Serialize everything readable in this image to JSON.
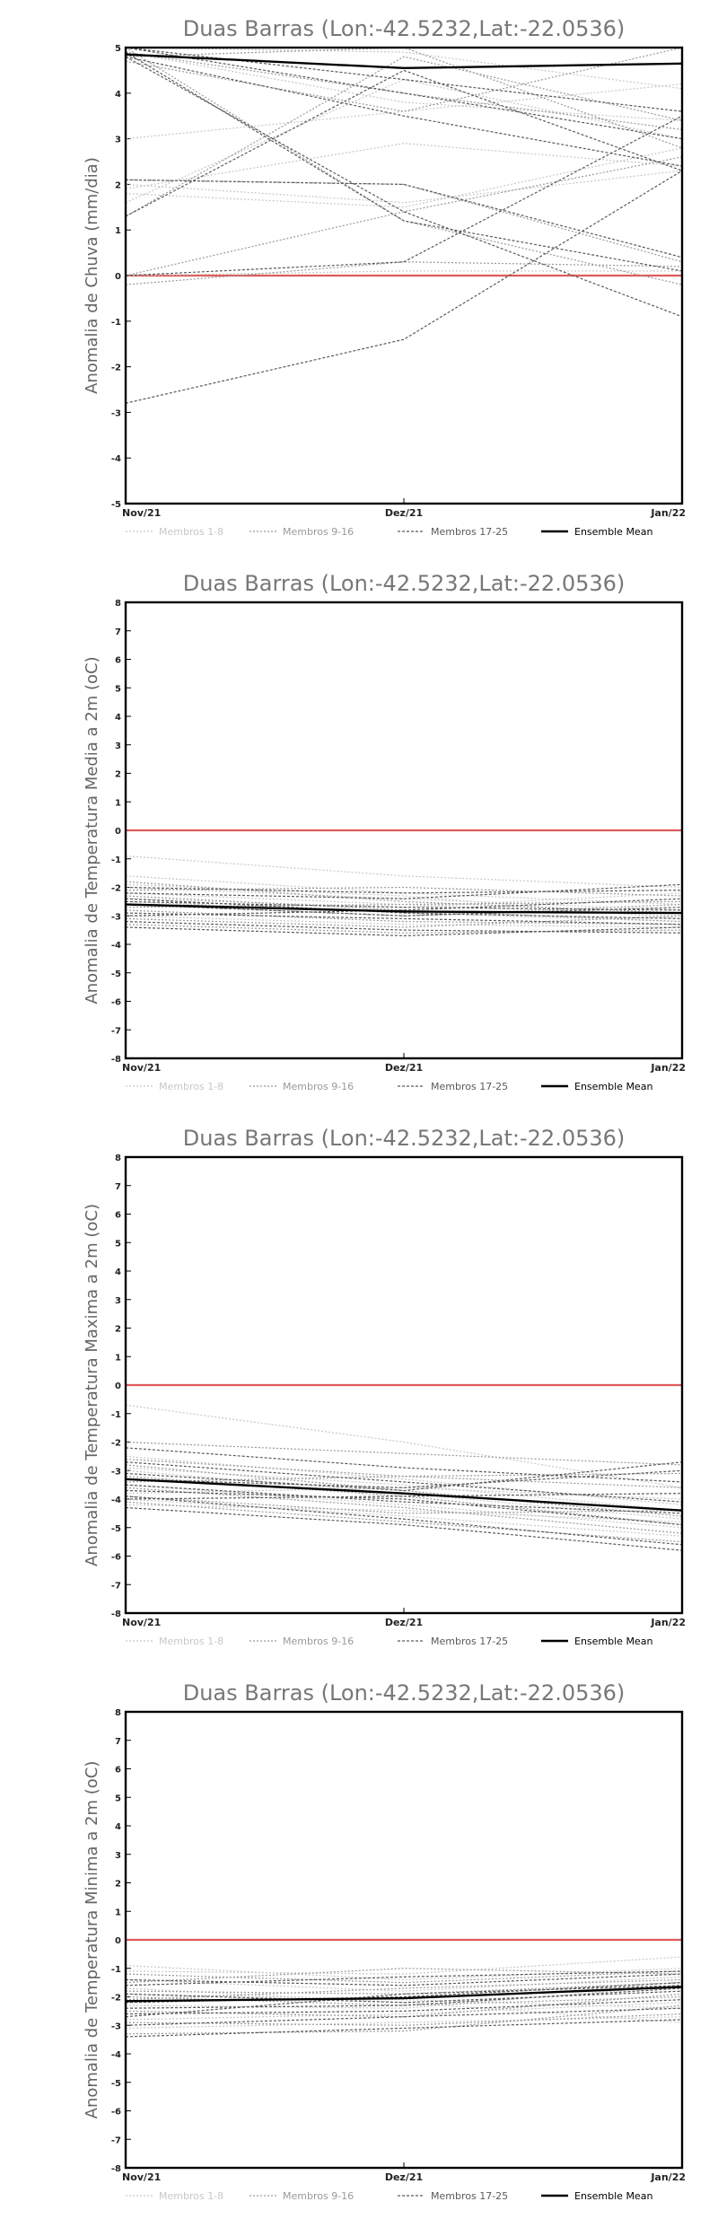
{
  "colors": {
    "zero_line": "#e05a5a",
    "members_1_8": "#c8c8c8",
    "members_9_16": "#9a9a9a",
    "members_17_25": "#5a5a5a",
    "ensemble_mean": "#000000"
  },
  "chart_data": [
    {
      "type": "line",
      "title": "Duas Barras (Lon:-42.5232,Lat:-22.0536)",
      "ylabel": "Anomalia de Chuva (mm/dia)",
      "categories": [
        "Nov/21",
        "Dez/21",
        "Jan/22"
      ],
      "ylim": [
        -5,
        5
      ],
      "yticks": [
        -5,
        -4,
        -3,
        -2,
        -1,
        0,
        1,
        2,
        3,
        4,
        5
      ],
      "legend": [
        "Membros 1-8",
        "Membros 9-16",
        "Membros 17-25",
        "Ensemble Mean"
      ],
      "series": [
        {
          "group": 0,
          "values": [
            3.0,
            3.6,
            4.2
          ]
        },
        {
          "group": 0,
          "values": [
            1.9,
            2.9,
            2.4
          ]
        },
        {
          "group": 0,
          "values": [
            1.8,
            1.5,
            2.8
          ]
        },
        {
          "group": 0,
          "values": [
            5.0,
            4.9,
            4.1
          ]
        },
        {
          "group": 0,
          "values": [
            2.0,
            1.6,
            2.3
          ]
        },
        {
          "group": 0,
          "values": [
            4.9,
            3.8,
            3.4
          ]
        },
        {
          "group": 0,
          "values": [
            1.6,
            4.3,
            3.0
          ]
        },
        {
          "group": 0,
          "values": [
            0.0,
            0.1,
            0.1
          ]
        },
        {
          "group": 1,
          "values": [
            4.9,
            4.0,
            3.2
          ]
        },
        {
          "group": 1,
          "values": [
            1.3,
            4.8,
            3.4
          ]
        },
        {
          "group": 1,
          "values": [
            -0.2,
            0.3,
            0.2
          ]
        },
        {
          "group": 1,
          "values": [
            2.1,
            2.0,
            0.3
          ]
        },
        {
          "group": 1,
          "values": [
            0.0,
            1.4,
            2.6
          ]
        },
        {
          "group": 1,
          "values": [
            4.7,
            3.6,
            5.0
          ]
        },
        {
          "group": 1,
          "values": [
            4.8,
            5.0,
            2.8
          ]
        },
        {
          "group": 1,
          "values": [
            5.0,
            1.2,
            -0.2
          ]
        },
        {
          "group": 2,
          "values": [
            -2.8,
            -1.4,
            2.3
          ]
        },
        {
          "group": 2,
          "values": [
            4.8,
            1.4,
            -0.9
          ]
        },
        {
          "group": 2,
          "values": [
            5.0,
            4.3,
            3.6
          ]
        },
        {
          "group": 2,
          "values": [
            2.1,
            2.0,
            0.4
          ]
        },
        {
          "group": 2,
          "values": [
            1.3,
            4.5,
            2.3
          ]
        },
        {
          "group": 2,
          "values": [
            4.9,
            1.2,
            0.1
          ]
        },
        {
          "group": 2,
          "values": [
            0.0,
            0.3,
            3.5
          ]
        },
        {
          "group": 2,
          "values": [
            4.8,
            3.5,
            2.4
          ]
        },
        {
          "group": 2,
          "values": [
            5.0,
            4.0,
            3.0
          ]
        },
        {
          "group": 3,
          "values": [
            4.85,
            4.55,
            4.65
          ]
        }
      ]
    },
    {
      "type": "line",
      "title": "Duas Barras (Lon:-42.5232,Lat:-22.0536)",
      "ylabel": "Anomalia de Temperatura Media a 2m (oC)",
      "categories": [
        "Nov/21",
        "Dez/21",
        "Jan/22"
      ],
      "ylim": [
        -8,
        8
      ],
      "yticks": [
        -8,
        -7,
        -6,
        -5,
        -4,
        -3,
        -2,
        -1,
        0,
        1,
        2,
        3,
        4,
        5,
        6,
        7,
        8
      ],
      "legend": [
        "Membros 1-8",
        "Membros 9-16",
        "Membros 17-25",
        "Ensemble Mean"
      ],
      "series": [
        {
          "group": 0,
          "values": [
            -0.9,
            -1.6,
            -2.0
          ]
        },
        {
          "group": 0,
          "values": [
            -1.6,
            -2.2,
            -2.6
          ]
        },
        {
          "group": 0,
          "values": [
            -2.0,
            -2.4,
            -2.8
          ]
        },
        {
          "group": 0,
          "values": [
            -2.2,
            -2.6,
            -3.0
          ]
        },
        {
          "group": 0,
          "values": [
            -2.5,
            -2.9,
            -3.2
          ]
        },
        {
          "group": 0,
          "values": [
            -3.0,
            -3.3,
            -3.4
          ]
        },
        {
          "group": 0,
          "values": [
            -2.4,
            -2.7,
            -2.2
          ]
        },
        {
          "group": 0,
          "values": [
            -1.9,
            -2.3,
            -3.1
          ]
        },
        {
          "group": 1,
          "values": [
            -2.1,
            -2.0,
            -2.3
          ]
        },
        {
          "group": 1,
          "values": [
            -2.3,
            -2.8,
            -3.2
          ]
        },
        {
          "group": 1,
          "values": [
            -2.6,
            -3.0,
            -2.6
          ]
        },
        {
          "group": 1,
          "values": [
            -2.8,
            -3.2,
            -3.3
          ]
        },
        {
          "group": 1,
          "values": [
            -3.1,
            -3.4,
            -3.0
          ]
        },
        {
          "group": 1,
          "values": [
            -3.3,
            -3.6,
            -3.5
          ]
        },
        {
          "group": 1,
          "values": [
            -1.8,
            -2.5,
            -2.9
          ]
        },
        {
          "group": 1,
          "values": [
            -2.7,
            -2.6,
            -2.5
          ]
        },
        {
          "group": 2,
          "values": [
            -2.0,
            -2.2,
            -2.1
          ]
        },
        {
          "group": 2,
          "values": [
            -2.2,
            -2.4,
            -1.9
          ]
        },
        {
          "group": 2,
          "values": [
            -2.5,
            -2.7,
            -2.8
          ]
        },
        {
          "group": 2,
          "values": [
            -2.9,
            -3.1,
            -3.3
          ]
        },
        {
          "group": 2,
          "values": [
            -3.2,
            -3.5,
            -3.6
          ]
        },
        {
          "group": 2,
          "values": [
            -3.4,
            -3.7,
            -3.4
          ]
        },
        {
          "group": 2,
          "values": [
            -2.4,
            -2.9,
            -3.1
          ]
        },
        {
          "group": 2,
          "values": [
            -2.6,
            -3.0,
            -2.7
          ]
        },
        {
          "group": 2,
          "values": [
            -3.0,
            -2.8,
            -2.4
          ]
        },
        {
          "group": 3,
          "values": [
            -2.6,
            -2.85,
            -2.9
          ]
        }
      ]
    },
    {
      "type": "line",
      "title": "Duas Barras (Lon:-42.5232,Lat:-22.0536)",
      "ylabel": "Anomalia de Temperatura Maxima a 2m (oC)",
      "categories": [
        "Nov/21",
        "Dez/21",
        "Jan/22"
      ],
      "ylim": [
        -8,
        8
      ],
      "yticks": [
        -8,
        -7,
        -6,
        -5,
        -4,
        -3,
        -2,
        -1,
        0,
        1,
        2,
        3,
        4,
        5,
        6,
        7,
        8
      ],
      "legend": [
        "Membros 1-8",
        "Membros 9-16",
        "Membros 17-25",
        "Ensemble Mean"
      ],
      "series": [
        {
          "group": 0,
          "values": [
            -0.7,
            -2.0,
            -3.6
          ]
        },
        {
          "group": 0,
          "values": [
            -2.5,
            -3.3,
            -4.2
          ]
        },
        {
          "group": 0,
          "values": [
            -3.0,
            -3.8,
            -4.7
          ]
        },
        {
          "group": 0,
          "values": [
            -3.5,
            -4.2,
            -5.0
          ]
        },
        {
          "group": 0,
          "values": [
            -4.0,
            -4.6,
            -5.3
          ]
        },
        {
          "group": 0,
          "values": [
            -3.8,
            -3.6,
            -4.0
          ]
        },
        {
          "group": 0,
          "values": [
            -2.9,
            -3.5,
            -4.4
          ]
        },
        {
          "group": 0,
          "values": [
            -4.2,
            -4.4,
            -4.8
          ]
        },
        {
          "group": 1,
          "values": [
            -2.0,
            -2.4,
            -2.8
          ]
        },
        {
          "group": 1,
          "values": [
            -2.6,
            -3.2,
            -3.6
          ]
        },
        {
          "group": 1,
          "values": [
            -3.2,
            -3.9,
            -4.9
          ]
        },
        {
          "group": 1,
          "values": [
            -3.6,
            -4.3,
            -5.2
          ]
        },
        {
          "group": 1,
          "values": [
            -4.1,
            -4.8,
            -5.5
          ]
        },
        {
          "group": 1,
          "values": [
            -3.4,
            -3.2,
            -3.1
          ]
        },
        {
          "group": 1,
          "values": [
            -2.8,
            -3.7,
            -4.6
          ]
        },
        {
          "group": 1,
          "values": [
            -3.9,
            -4.5,
            -4.4
          ]
        },
        {
          "group": 2,
          "values": [
            -2.2,
            -2.9,
            -3.4
          ]
        },
        {
          "group": 2,
          "values": [
            -2.7,
            -3.4,
            -4.1
          ]
        },
        {
          "group": 2,
          "values": [
            -3.1,
            -3.7,
            -2.7
          ]
        },
        {
          "group": 2,
          "values": [
            -3.5,
            -4.1,
            -4.5
          ]
        },
        {
          "group": 2,
          "values": [
            -3.9,
            -4.7,
            -5.6
          ]
        },
        {
          "group": 2,
          "values": [
            -4.3,
            -4.9,
            -5.8
          ]
        },
        {
          "group": 2,
          "values": [
            -3.3,
            -3.6,
            -3.0
          ]
        },
        {
          "group": 2,
          "values": [
            -3.7,
            -4.0,
            -4.9
          ]
        },
        {
          "group": 2,
          "values": [
            -4.0,
            -3.9,
            -3.8
          ]
        },
        {
          "group": 3,
          "values": [
            -3.3,
            -3.8,
            -4.4
          ]
        }
      ]
    },
    {
      "type": "line",
      "title": "Duas Barras (Lon:-42.5232,Lat:-22.0536)",
      "ylabel": "Anomalia de Temperatura Minima a 2m (oC)",
      "categories": [
        "Nov/21",
        "Dez/21",
        "Jan/22"
      ],
      "ylim": [
        -8,
        8
      ],
      "yticks": [
        -8,
        -7,
        -6,
        -5,
        -4,
        -3,
        -2,
        -1,
        0,
        1,
        2,
        3,
        4,
        5,
        6,
        7,
        8
      ],
      "legend": [
        "Membros 1-8",
        "Membros 9-16",
        "Membros 17-25",
        "Ensemble Mean"
      ],
      "series": [
        {
          "group": 0,
          "values": [
            -0.9,
            -1.4,
            -1.0
          ]
        },
        {
          "group": 0,
          "values": [
            -1.4,
            -1.8,
            -1.3
          ]
        },
        {
          "group": 0,
          "values": [
            -1.9,
            -2.1,
            -2.4
          ]
        },
        {
          "group": 0,
          "values": [
            -2.3,
            -2.4,
            -1.6
          ]
        },
        {
          "group": 0,
          "values": [
            -2.8,
            -2.6,
            -2.2
          ]
        },
        {
          "group": 0,
          "values": [
            -3.1,
            -2.9,
            -2.7
          ]
        },
        {
          "group": 0,
          "values": [
            -1.1,
            -1.2,
            -0.6
          ]
        },
        {
          "group": 0,
          "values": [
            -1.7,
            -2.2,
            -2.9
          ]
        },
        {
          "group": 1,
          "values": [
            -1.2,
            -1.5,
            -1.1
          ]
        },
        {
          "group": 1,
          "values": [
            -1.8,
            -1.9,
            -1.5
          ]
        },
        {
          "group": 1,
          "values": [
            -2.0,
            -2.3,
            -2.0
          ]
        },
        {
          "group": 1,
          "values": [
            -2.5,
            -2.7,
            -1.9
          ]
        },
        {
          "group": 1,
          "values": [
            -2.9,
            -3.0,
            -2.6
          ]
        },
        {
          "group": 1,
          "values": [
            -3.3,
            -3.2,
            -2.3
          ]
        },
        {
          "group": 1,
          "values": [
            -1.5,
            -1.0,
            -1.2
          ]
        },
        {
          "group": 1,
          "values": [
            -2.1,
            -1.7,
            -1.4
          ]
        },
        {
          "group": 2,
          "values": [
            -1.4,
            -1.6,
            -1.2
          ]
        },
        {
          "group": 2,
          "values": [
            -1.9,
            -2.2,
            -1.8
          ]
        },
        {
          "group": 2,
          "values": [
            -2.2,
            -2.0,
            -1.5
          ]
        },
        {
          "group": 2,
          "values": [
            -2.6,
            -2.5,
            -2.1
          ]
        },
        {
          "group": 2,
          "values": [
            -3.0,
            -2.7,
            -2.4
          ]
        },
        {
          "group": 2,
          "values": [
            -3.4,
            -3.1,
            -2.8
          ]
        },
        {
          "group": 2,
          "values": [
            -1.6,
            -1.3,
            -1.1
          ]
        },
        {
          "group": 2,
          "values": [
            -2.4,
            -2.3,
            -1.7
          ]
        },
        {
          "group": 2,
          "values": [
            -2.7,
            -1.9,
            -1.6
          ]
        },
        {
          "group": 3,
          "values": [
            -2.15,
            -2.05,
            -1.65
          ]
        }
      ]
    }
  ]
}
